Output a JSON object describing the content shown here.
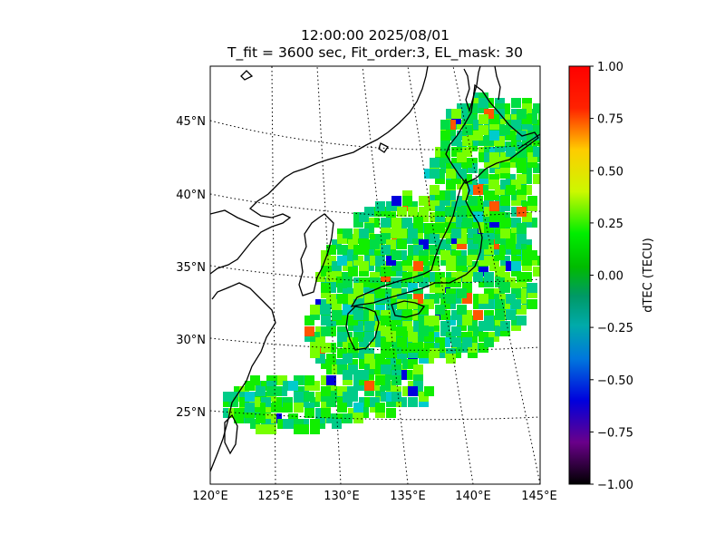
{
  "title_line1": "12:00:00 2025/08/01",
  "title_line2": "T_fit = 3600 sec, Fit_order:3, EL_mask: 30",
  "map": {
    "lon_range": [
      120,
      145
    ],
    "lat_range": [
      20,
      49
    ],
    "lon_ticks": [
      "120°E",
      "125°E",
      "130°E",
      "135°E",
      "140°E",
      "145°E"
    ],
    "lat_ticks": [
      "45°N",
      "40°N",
      "35°N",
      "30°N",
      "25°N"
    ],
    "gridlines": "dotted",
    "region": "Japan and surrounding East Asia"
  },
  "colorbar": {
    "label": "dTEC (TECU)",
    "min": -1.0,
    "max": 1.0,
    "ticks": [
      "1.00",
      "0.75",
      "0.50",
      "0.25",
      "0.00",
      "−0.25",
      "−0.50",
      "−0.75",
      "−1.00"
    ],
    "colormap": "nipy_spectral"
  }
}
